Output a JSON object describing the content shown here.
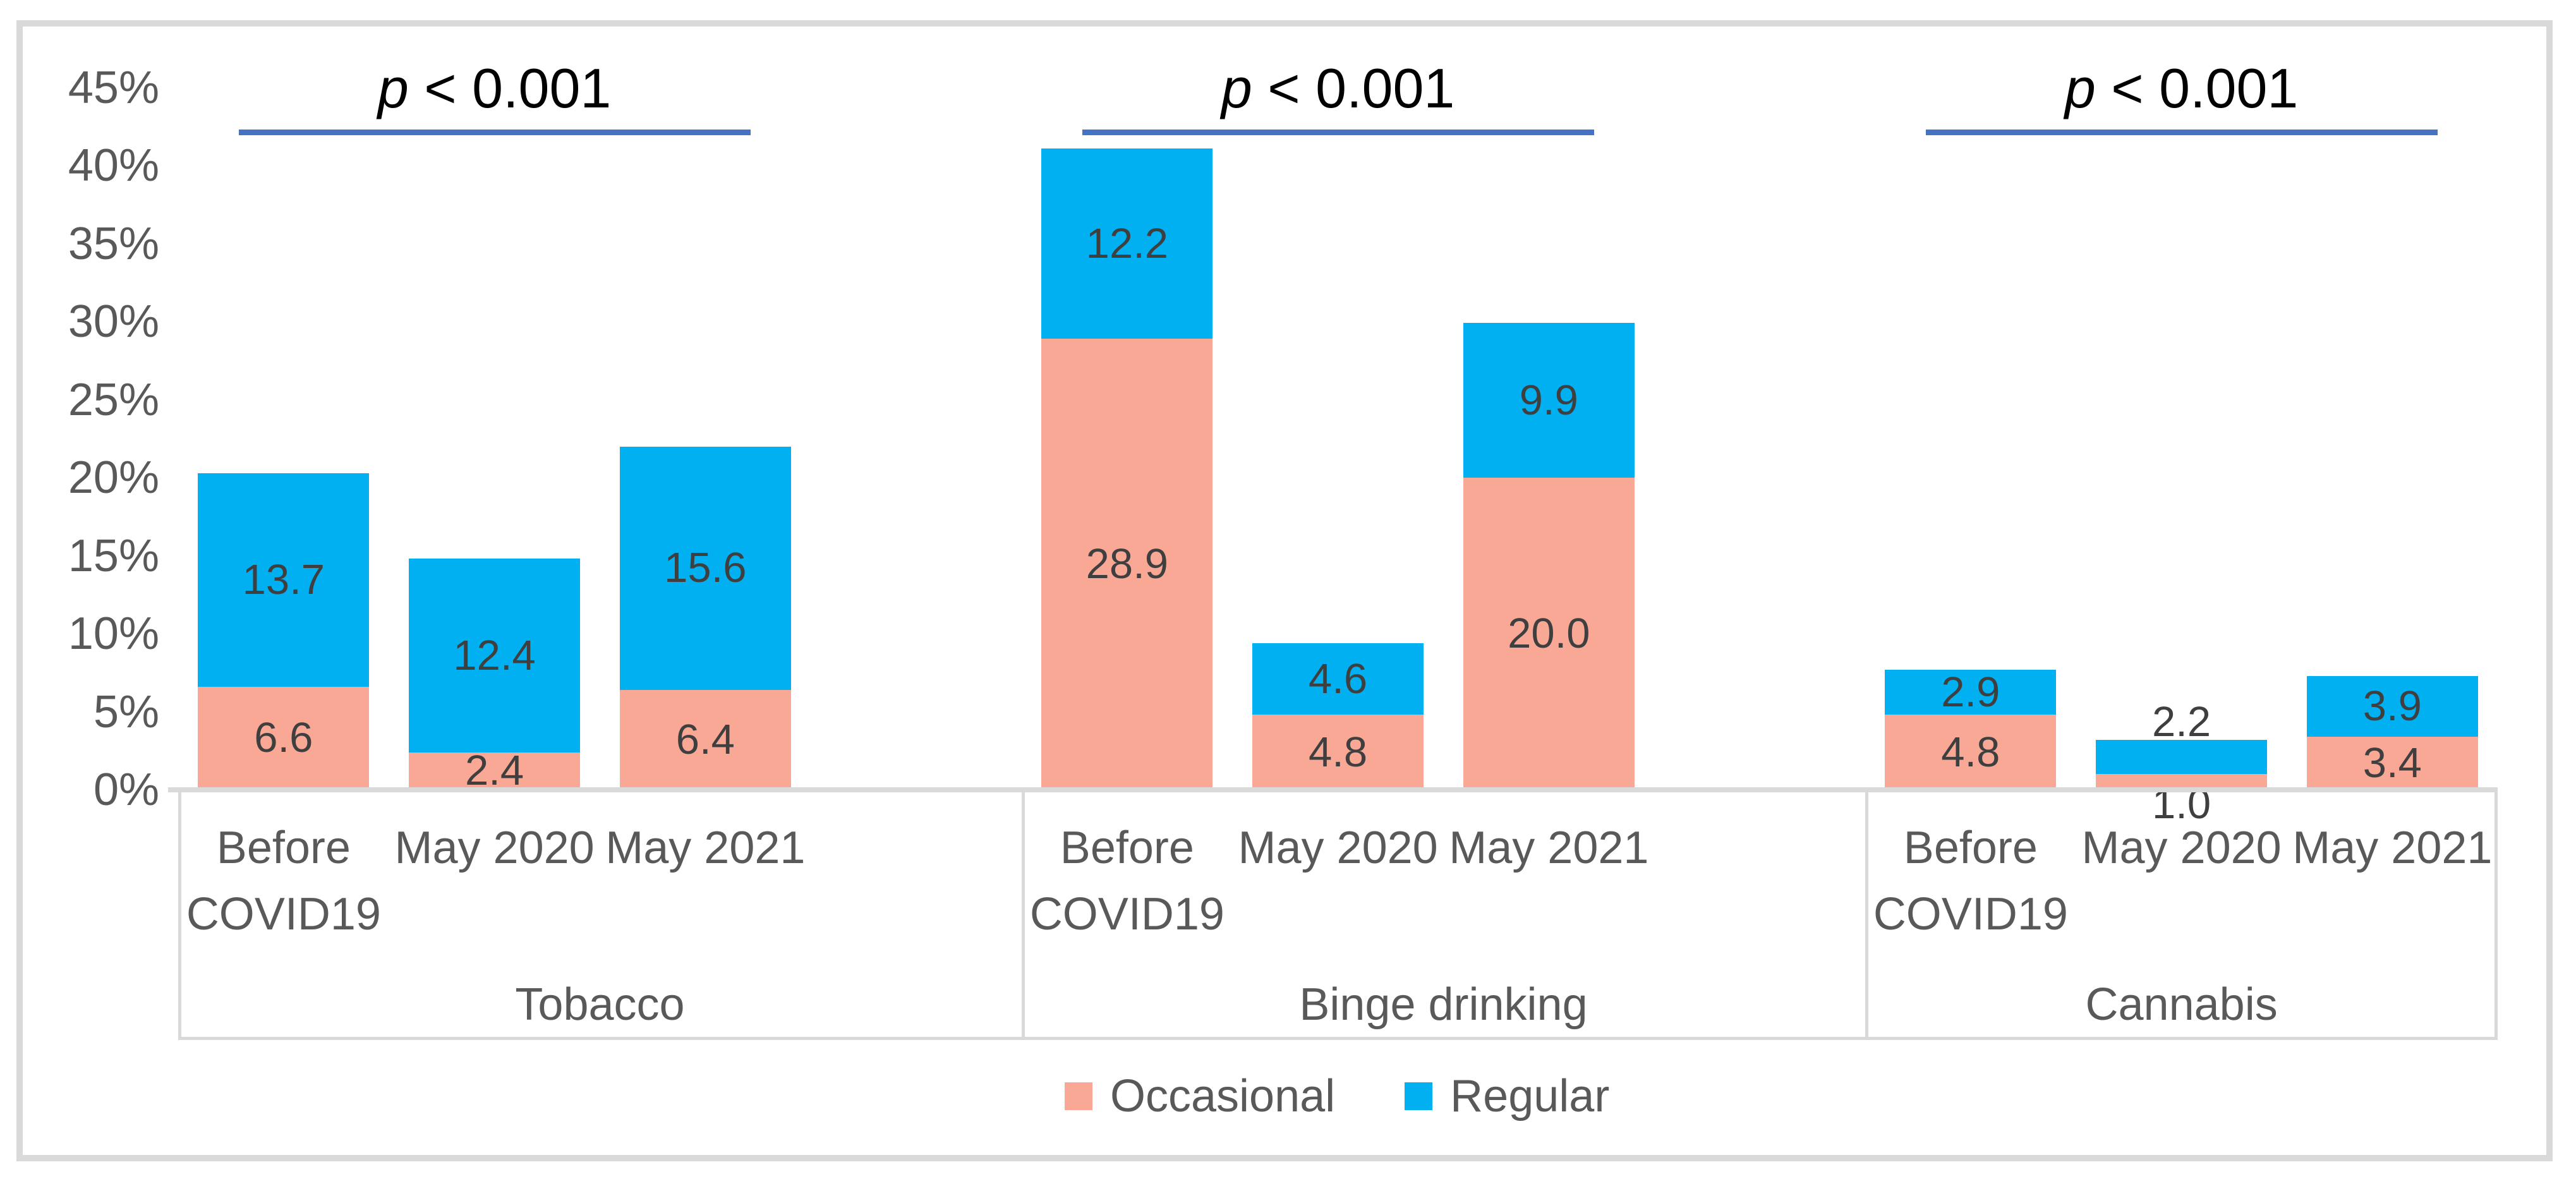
{
  "chart_data": {
    "type": "bar",
    "stacked": true,
    "title": "",
    "ylabel": "",
    "xlabel": "",
    "y_axis": {
      "min": 0,
      "max": 45,
      "unit": "%",
      "tick_step": 5,
      "tick_labels": [
        "0%",
        "5%",
        "10%",
        "15%",
        "20%",
        "25%",
        "30%",
        "35%",
        "40%",
        "45%"
      ],
      "tick_values": [
        0,
        5,
        10,
        15,
        20,
        25,
        30,
        35,
        40,
        45
      ],
      "grid": false
    },
    "legend_position": "bottom",
    "legend": [
      {
        "name": "Occasional",
        "color": "#F8A895"
      },
      {
        "name": "Regular",
        "color": "#00B0F0"
      }
    ],
    "annotation_color": "#4472C4",
    "groups": [
      {
        "label": "Tobacco",
        "p_label": "p < 0.001",
        "categories": [
          "Before COVID19",
          "May 2020",
          "May 2021"
        ],
        "series": [
          {
            "name": "Occasional",
            "values": [
              6.6,
              2.4,
              6.4
            ],
            "labels": [
              "6.6",
              "2.4",
              "6.4"
            ]
          },
          {
            "name": "Regular",
            "values": [
              13.7,
              12.4,
              15.6
            ],
            "labels": [
              "13.7",
              "12.4",
              "15.6"
            ]
          }
        ]
      },
      {
        "label": "Binge drinking",
        "p_label": "p < 0.001",
        "categories": [
          "Before COVID19",
          "May 2020",
          "May 2021"
        ],
        "series": [
          {
            "name": "Occasional",
            "values": [
              28.9,
              4.8,
              20.0
            ],
            "labels": [
              "28.9",
              "4.8",
              "20.0"
            ]
          },
          {
            "name": "Regular",
            "values": [
              12.2,
              4.6,
              9.9
            ],
            "labels": [
              "12.2",
              "4.6",
              "9.9"
            ]
          }
        ]
      },
      {
        "label": "Cannabis",
        "p_label": "p < 0.001",
        "categories": [
          "Before COVID19",
          "May 2020",
          "May 2021"
        ],
        "series": [
          {
            "name": "Occasional",
            "values": [
              4.8,
              1.0,
              3.4
            ],
            "labels": [
              "4.8",
              "1.0",
              "3.4"
            ]
          },
          {
            "name": "Regular",
            "values": [
              2.9,
              2.2,
              3.9
            ],
            "labels": [
              "2.9",
              "2.2",
              "3.9"
            ]
          }
        ]
      }
    ],
    "colors": {
      "occasional": "#F8A895",
      "regular": "#00B0F0",
      "bracket": "#4472C4",
      "axis_text": "#595959",
      "bar_label_text": "#3F3F3F",
      "lines": "#D9D9D9"
    }
  }
}
